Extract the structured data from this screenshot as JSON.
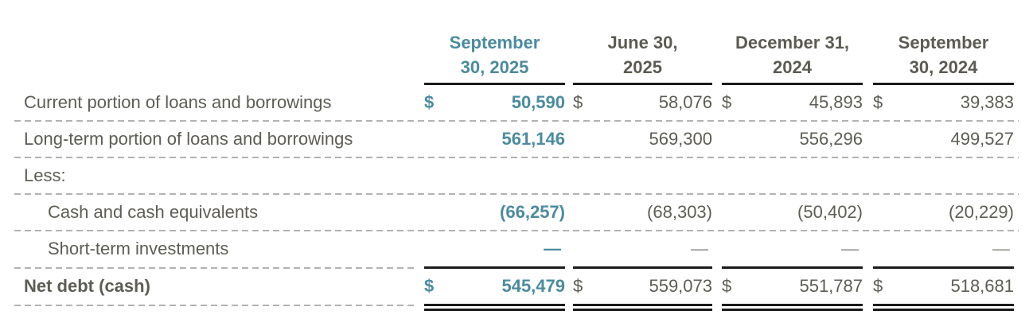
{
  "table": {
    "currency_symbol": "$",
    "header": {
      "columns": [
        {
          "line1": "September",
          "line2": "30, 2025",
          "highlighted": true
        },
        {
          "line1": "June 30,",
          "line2": "2025",
          "highlighted": false
        },
        {
          "line1": "December 31,",
          "line2": "2024",
          "highlighted": false
        },
        {
          "line1": "September",
          "line2": "30, 2024",
          "highlighted": false
        }
      ]
    },
    "rows": [
      {
        "label": "Current portion of loans and borrowings",
        "values": [
          "50,590",
          "58,076",
          "45,893",
          "39,383"
        ],
        "currency": true
      },
      {
        "label": "Long-term portion of loans and borrowings",
        "values": [
          "561,146",
          "569,300",
          "556,296",
          "499,527"
        ]
      },
      {
        "label": "Less:"
      },
      {
        "label": "Cash and cash equivalents",
        "values": [
          "(66,257)",
          "(68,303)",
          "(50,402)",
          "(20,229)"
        ],
        "indented": true
      },
      {
        "label": "Short-term investments",
        "values": [
          "—",
          "—",
          "—",
          "—"
        ],
        "indented": true
      },
      {
        "label": "Net debt (cash)",
        "values": [
          "545,479",
          "559,073",
          "551,787",
          "518,681"
        ],
        "currency": true,
        "bold": true
      }
    ]
  },
  "colors": {
    "accent_teal": "#4a8ba0",
    "body_text": "#5e5d55",
    "rule_black": "#1b1b1b",
    "dash_gray": "#b2b2b0"
  }
}
